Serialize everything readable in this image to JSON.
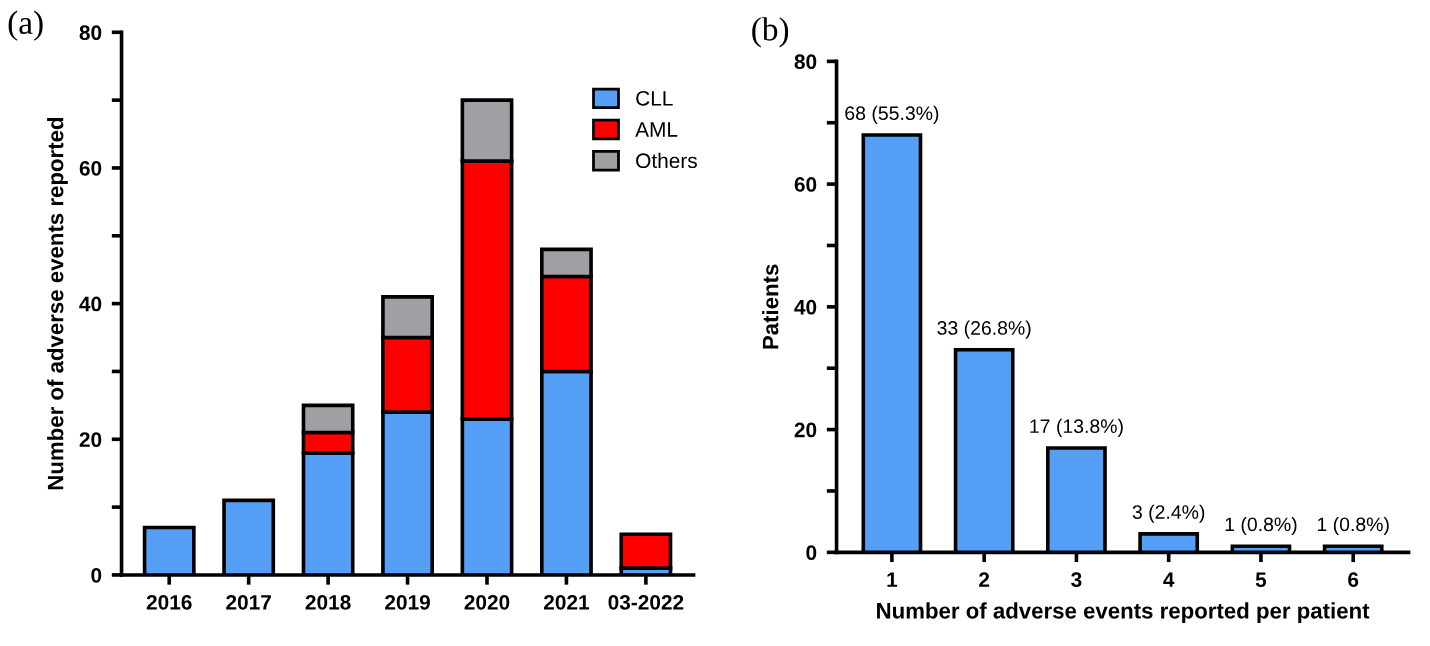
{
  "chart_data": [
    {
      "type": "bar",
      "title": "(a)",
      "ylabel": "Number of adverse events reported",
      "stacked": true,
      "legend": "top right",
      "categories": [
        "2016",
        "2017",
        "2018",
        "2019",
        "2020",
        "2021",
        "03-2022"
      ],
      "series": [
        {
          "name": "CLL",
          "color": "#559ff7",
          "values": [
            7,
            11,
            18,
            24,
            23,
            30,
            1
          ]
        },
        {
          "name": "AML",
          "color": "#ff0000",
          "values": [
            null,
            null,
            3,
            11,
            38,
            14,
            5
          ]
        },
        {
          "name": "Others",
          "color": "#a0a0a4",
          "values": [
            null,
            null,
            4,
            6,
            9,
            4,
            null
          ]
        }
      ],
      "ylim": [
        0,
        80
      ],
      "yticks": [
        0,
        {
          "value": 10,
          "label": null
        },
        20,
        {
          "value": 30,
          "label": null
        },
        40,
        {
          "value": 50,
          "label": null
        },
        60,
        {
          "value": 70,
          "label": null
        },
        80
      ],
      "grid": false
    },
    {
      "type": "bar",
      "title": "(b)",
      "ylabel": "Patients",
      "xlabel": "Number of adverse events reported per patient",
      "categories": [
        "1",
        "2",
        "3",
        "4",
        "5",
        "6"
      ],
      "values": [
        68,
        33,
        17,
        3,
        1,
        1
      ],
      "color": "#559ff7",
      "value_labels": [
        "68 (55.3%)",
        "33 (26.8%)",
        "17 (13.8%)",
        "3 (2.4%)",
        "1 (0.8%)",
        "1 (0.8%)"
      ],
      "ylim": [
        0,
        80
      ],
      "yticks": [
        0,
        {
          "value": 10,
          "label": null
        },
        20,
        {
          "value": 30,
          "label": null
        },
        40,
        {
          "value": 50,
          "label": null
        },
        60,
        {
          "value": 70,
          "label": null
        },
        80
      ],
      "grid": false
    }
  ]
}
